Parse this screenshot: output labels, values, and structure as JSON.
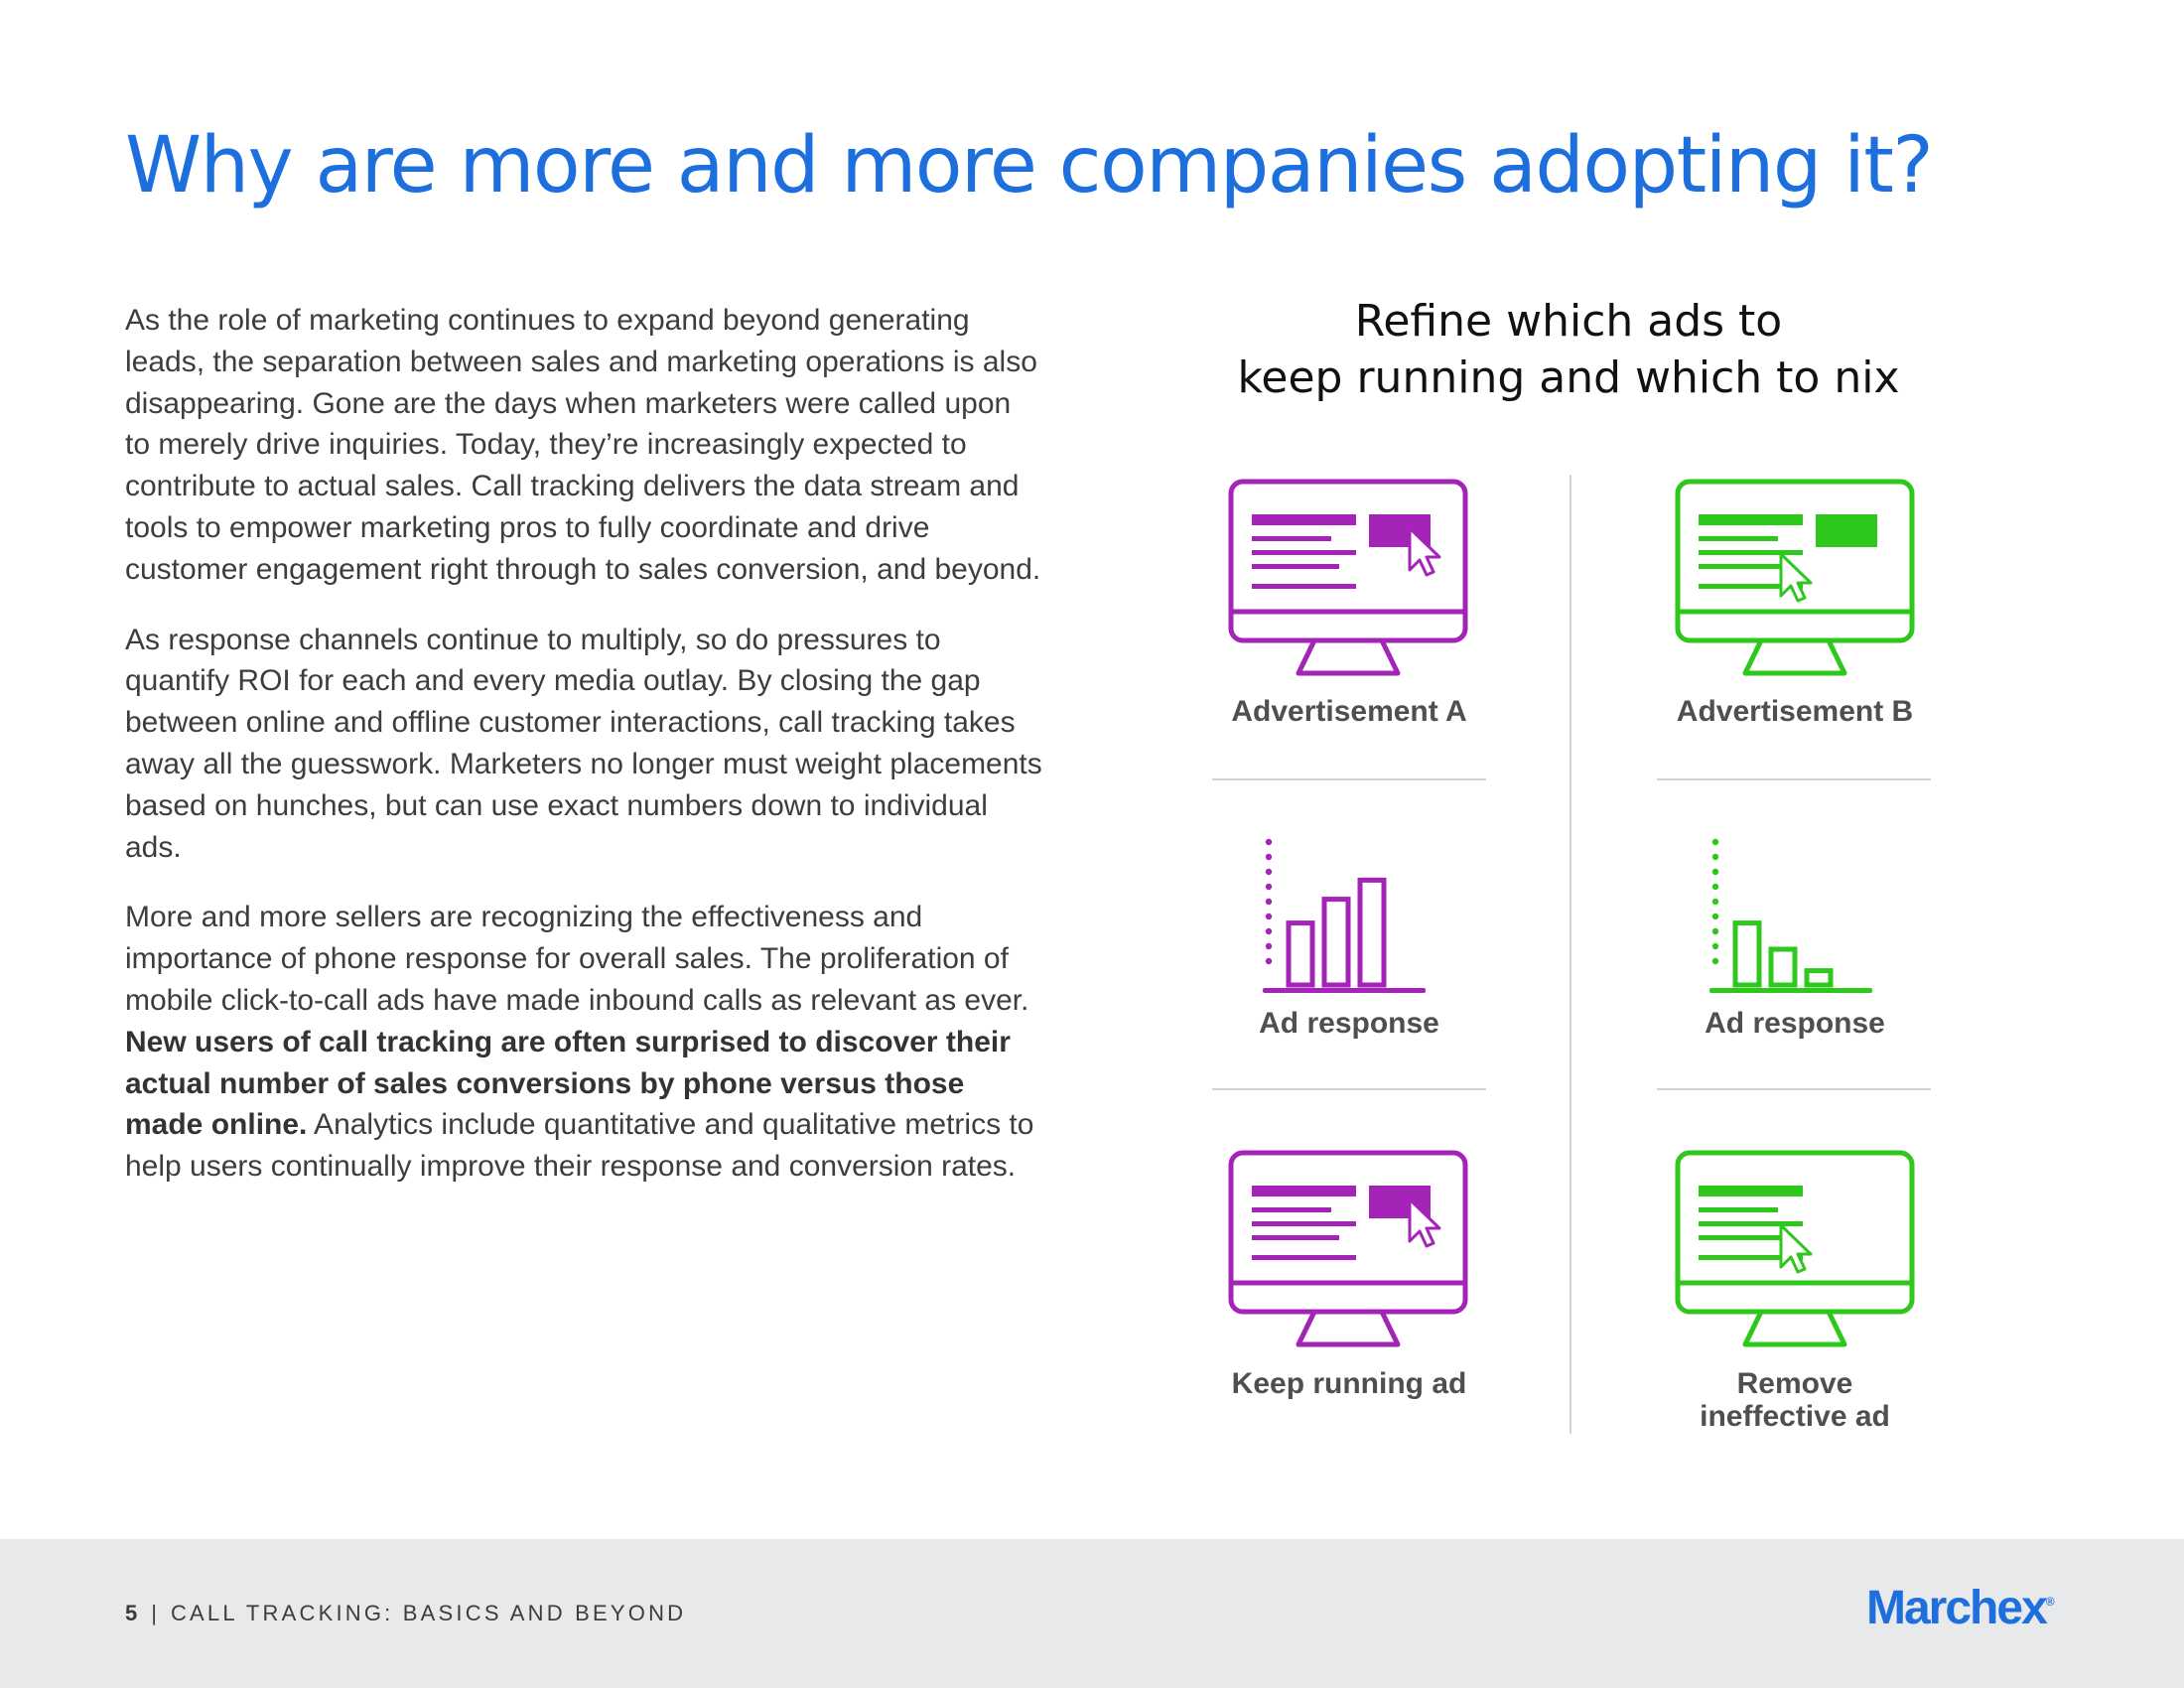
{
  "colors": {
    "accent_blue": "#1d6fde",
    "purple": "#a324b7",
    "green": "#2ec81c"
  },
  "page": {
    "title": "Why are more and more companies adopting it?",
    "paragraphs": [
      {
        "text": "As the role of marketing continues to expand beyond generating leads, the separation between sales and marketing operations is also disappearing. Gone are the days when marketers were called upon to merely drive inquiries. Today, they’re increasingly expected to contribute to actual sales. Call tracking delivers the data stream and tools to empower marketing pros to fully coordinate and drive customer engagement right through to sales conversion, and beyond."
      },
      {
        "text": "As response channels continue to multiply, so do pressures to quantify ROI for each and every media outlay. By closing the gap between online and offline customer interactions, call tracking takes away all the guesswork. Marketers no longer must weight placements based on hunches, but can use exact numbers down to individual ads."
      },
      {
        "before": "More and more sellers are recognizing the effectiveness and importance of phone response for overall sales. The proliferation of mobile click-to-call ads have made inbound calls as relevant as ever. ",
        "bold": "New users of call tracking are often surprised to discover their actual number of sales conversions by phone versus those made online.",
        "after": " Analytics include quantitative and qualitative metrics to help users continually improve their response and conversion rates."
      }
    ]
  },
  "infographic": {
    "heading_line1": "Refine which ads to",
    "heading_line2": "keep running and which to nix",
    "icons": {
      "monitor": "monitor-ad-icon",
      "cursor": "cursor-icon",
      "bars": "bar-chart-icon"
    },
    "column_a": {
      "ad_label": "Advertisement A",
      "response_label": "Ad response",
      "response_bars": [
        0.52,
        0.72,
        0.88
      ],
      "outcome_label": "Keep running ad"
    },
    "column_b": {
      "ad_label": "Advertisement B",
      "response_label": "Ad response",
      "response_bars": [
        0.52,
        0.3,
        0.12
      ],
      "outcome_label_line1": "Remove",
      "outcome_label_line2": "ineffective ad"
    }
  },
  "footer": {
    "page_number": "5",
    "separator": "|",
    "doc_title": "CALL TRACKING: BASICS AND BEYOND",
    "logo_text": "Marchex",
    "logo_mark": "®"
  }
}
